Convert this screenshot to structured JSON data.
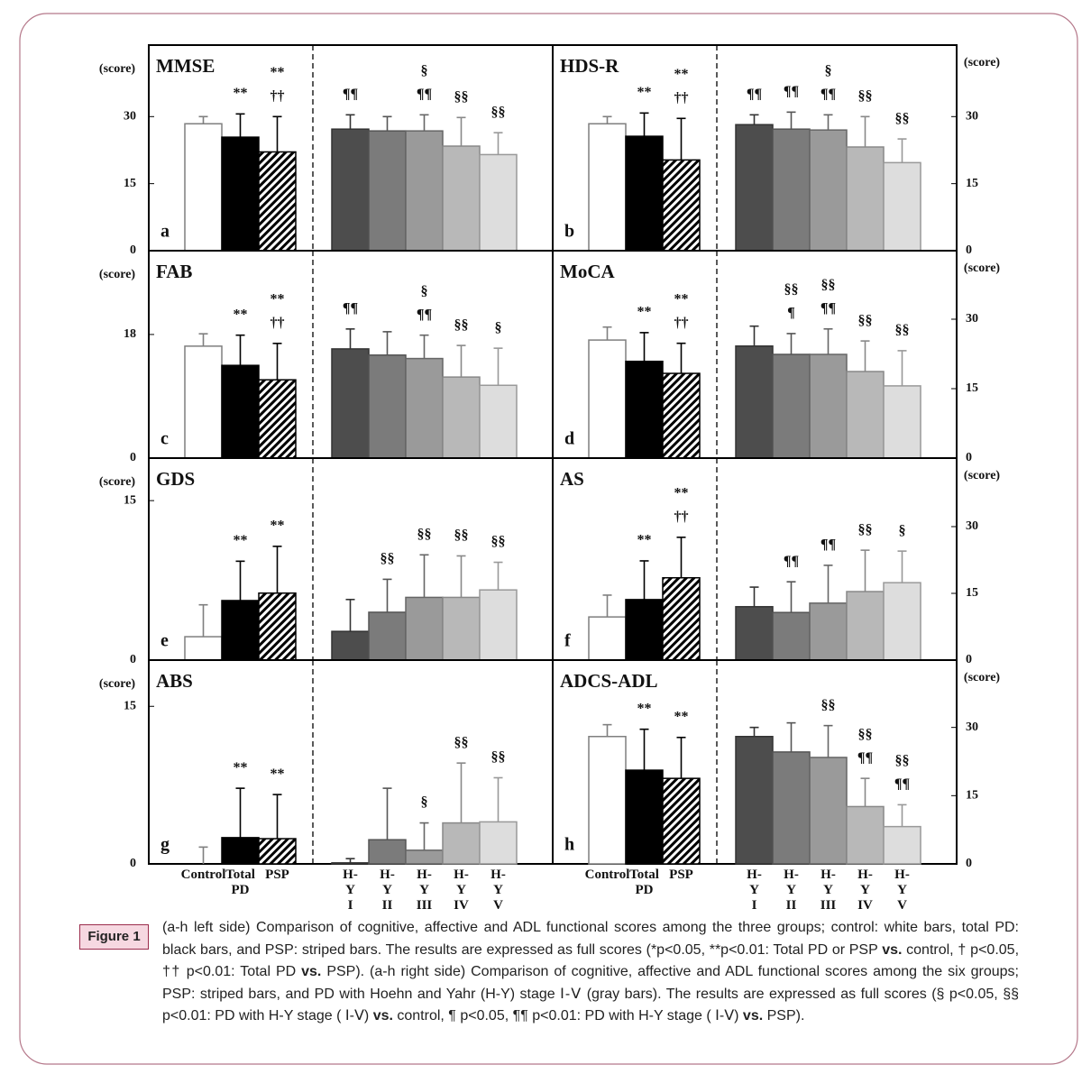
{
  "chart_data": [
    {
      "type": "bar",
      "title": "MMSE",
      "label": "a",
      "ylabel": "(score)",
      "y_axis_side": "left",
      "ylim": [
        0,
        46
      ],
      "yticks": [
        0,
        15,
        30
      ],
      "values": [
        28.4,
        25.4,
        22.1,
        27.2,
        26.8,
        26.8,
        23.4,
        21.5
      ],
      "errors": [
        1.6,
        5.2,
        7.9,
        3.2,
        3.2,
        3.6,
        6.4,
        4.9
      ],
      "annotations": [
        [],
        [
          "**"
        ],
        [
          "**",
          "††"
        ],
        [
          "¶¶"
        ],
        [],
        [
          "§",
          "¶¶"
        ],
        [
          "§§"
        ],
        [
          "§§"
        ]
      ]
    },
    {
      "type": "bar",
      "title": "HDS-R",
      "label": "b",
      "ylabel": "(score)",
      "y_axis_side": "right",
      "ylim": [
        0,
        46
      ],
      "yticks": [
        0,
        15,
        30
      ],
      "values": [
        28.4,
        25.6,
        20.3,
        28.2,
        27.2,
        27.0,
        23.2,
        19.7
      ],
      "errors": [
        1.6,
        5.2,
        9.3,
        2.2,
        3.8,
        3.4,
        6.8,
        5.3
      ],
      "annotations": [
        [],
        [
          "**"
        ],
        [
          "**",
          "††"
        ],
        [
          "¶¶"
        ],
        [
          "¶¶"
        ],
        [
          "§",
          "¶¶"
        ],
        [
          "§§"
        ],
        [
          "§§"
        ]
      ]
    },
    {
      "type": "bar",
      "title": "FAB",
      "label": "c",
      "ylabel": "(score)",
      "y_axis_side": "left",
      "ylim": [
        0,
        30.2
      ],
      "yticks": [
        0,
        18
      ],
      "values": [
        16.3,
        13.5,
        11.4,
        15.9,
        15.0,
        14.5,
        11.8,
        10.6
      ],
      "errors": [
        1.8,
        4.4,
        5.3,
        2.9,
        3.4,
        3.4,
        4.6,
        5.4
      ],
      "annotations": [
        [],
        [
          "**"
        ],
        [
          "**",
          "††"
        ],
        [
          "¶¶"
        ],
        [],
        [
          "§",
          "¶¶"
        ],
        [
          "§§"
        ],
        [
          "§"
        ]
      ]
    },
    {
      "type": "bar",
      "title": "MoCA",
      "label": "d",
      "ylabel": "(score)",
      "y_axis_side": "right",
      "ylim": [
        0,
        44.8
      ],
      "yticks": [
        0,
        15,
        30
      ],
      "values": [
        25.5,
        20.9,
        18.3,
        24.2,
        22.4,
        22.4,
        18.7,
        15.6
      ],
      "errors": [
        2.8,
        6.2,
        6.5,
        4.3,
        4.5,
        5.5,
        6.6,
        7.6
      ],
      "annotations": [
        [],
        [
          "**"
        ],
        [
          "**",
          "††"
        ],
        [],
        [
          "§§",
          "¶"
        ],
        [
          "§§",
          "¶¶"
        ],
        [
          "§§"
        ],
        [
          "§§"
        ]
      ]
    },
    {
      "type": "bar",
      "title": "GDS",
      "label": "e",
      "ylabel": "(score)",
      "y_axis_side": "left",
      "ylim": [
        0,
        19
      ],
      "yticks": [
        0,
        15
      ],
      "values": [
        2.2,
        5.6,
        6.3,
        2.7,
        4.5,
        5.9,
        5.9,
        6.6
      ],
      "errors": [
        3.0,
        3.7,
        4.4,
        3.0,
        3.1,
        4.0,
        3.9,
        2.6
      ],
      "annotations": [
        [],
        [
          "**"
        ],
        [
          "**"
        ],
        [],
        [
          "§§"
        ],
        [
          "§§"
        ],
        [
          "§§"
        ],
        [
          "§§"
        ]
      ]
    },
    {
      "type": "bar",
      "title": "AS",
      "label": "f",
      "ylabel": "(score)",
      "y_axis_side": "right",
      "ylim": [
        0,
        45.4
      ],
      "yticks": [
        0,
        15,
        30
      ],
      "values": [
        9.7,
        13.6,
        18.5,
        12.0,
        10.7,
        12.8,
        15.4,
        17.4
      ],
      "errors": [
        4.9,
        8.7,
        9.1,
        4.4,
        6.9,
        8.5,
        9.3,
        7.1
      ],
      "annotations": [
        [],
        [
          "**"
        ],
        [
          "**",
          "††"
        ],
        [],
        [
          "¶¶"
        ],
        [
          "¶¶"
        ],
        [
          "§§"
        ],
        [
          "§"
        ]
      ]
    },
    {
      "type": "bar",
      "title": "ABS",
      "label": "g",
      "ylabel": "(score)",
      "y_axis_side": "left",
      "ylim": [
        0,
        19.4
      ],
      "yticks": [
        0,
        15
      ],
      "categories": [
        "Control",
        "Total PD",
        "PSP",
        "H-Y I",
        "H-Y II",
        "H-Y III",
        "H-Y IV",
        "H-Y V"
      ],
      "values": [
        0,
        2.5,
        2.4,
        0.1,
        2.3,
        1.3,
        3.9,
        4.0
      ],
      "errors": [
        1.6,
        4.7,
        4.2,
        0.4,
        4.9,
        2.6,
        5.7,
        4.2
      ],
      "annotations": [
        [],
        [
          "**"
        ],
        [
          "**"
        ],
        [],
        [],
        [
          "§"
        ],
        [
          "§§"
        ],
        [
          "§§"
        ]
      ]
    },
    {
      "type": "bar",
      "title": "ADCS-ADL",
      "label": "h",
      "ylabel": "(score)",
      "y_axis_side": "right",
      "ylim": [
        0,
        44.8
      ],
      "yticks": [
        0,
        15,
        30
      ],
      "categories": [
        "Control",
        "Total PD",
        "PSP",
        "H-Y I",
        "H-Y II",
        "H-Y III",
        "H-Y IV",
        "H-Y V"
      ],
      "values": [
        28.0,
        20.6,
        18.8,
        28.0,
        24.6,
        23.4,
        12.6,
        8.2
      ],
      "errors": [
        2.6,
        9.0,
        9.0,
        2.0,
        6.4,
        7.0,
        6.2,
        4.8
      ],
      "annotations": [
        [],
        [
          "**"
        ],
        [
          "**"
        ],
        [],
        [],
        [
          "§§"
        ],
        [
          "§§",
          "¶¶"
        ],
        [
          "§§",
          "¶¶"
        ]
      ]
    }
  ],
  "bar_colors": [
    "#ffffff",
    "#000000",
    "#000000",
    "#4d4d4d",
    "#7b7b7b",
    "#9a9a9a",
    "#b8b8b8",
    "#dddddd"
  ],
  "bar_edge_colors": [
    "#7f7f7f",
    "#000000",
    "#000000",
    "#333333",
    "#555555",
    "#666666",
    "#888888",
    "#999999"
  ],
  "hatched_bar": 2,
  "figure_label": "Figure 1",
  "caption": [
    {
      "text": "(a-h left side) Comparison of cognitive, affective and ADL functional scores among the three groups; control: white bars, total PD: black bars, and PSP: striped bars. The results are expressed as full scores (*p<0.05, **p<0.01: Total PD or PSP ",
      "bold": false
    },
    {
      "text": "vs.",
      "bold": true
    },
    {
      "text": " control, † p<0.05, †† p<0.01: Total PD ",
      "bold": false
    },
    {
      "text": "vs.",
      "bold": true
    },
    {
      "text": " PSP). (a-h right side) Comparison of cognitive, affective and ADL functional scores among the six groups; PSP: striped bars, and PD with Hoehn and Yahr (H-Y) stage Ⅰ-Ⅴ (gray bars). The results are expressed as full scores (§ p<0.05, §§ p<0.01: PD with H-Y stage ( Ⅰ-Ⅴ) ",
      "bold": false
    },
    {
      "text": "vs.",
      "bold": true
    },
    {
      "text": " control, ¶ p<0.05, ¶¶ p<0.01: PD with H-Y stage ( Ⅰ-Ⅴ) ",
      "bold": false
    },
    {
      "text": "vs.",
      "bold": true
    },
    {
      "text": " PSP).",
      "bold": false
    }
  ]
}
